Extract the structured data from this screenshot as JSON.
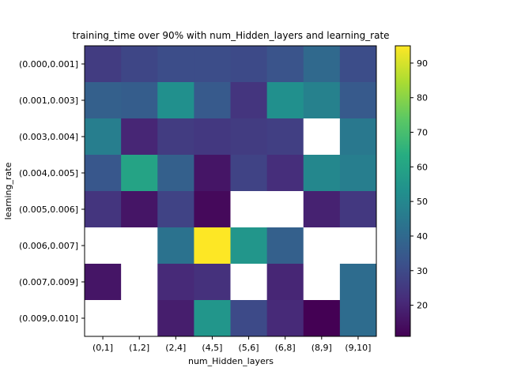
{
  "chart_data": {
    "type": "heatmap",
    "title": "training_time over 90% with num_Hidden_layers and learning_rate",
    "xlabel": "num_Hidden_layers",
    "ylabel": "learning_rate",
    "x_categories": [
      "(0,1]",
      "(1,2]",
      "(2,4]",
      "(4,5]",
      "(5,6]",
      "(6,8]",
      "(8,9]",
      "(9,10]"
    ],
    "y_categories": [
      "(0.000,0.001]",
      "(0.001,0.003]",
      "(0.003,0.004]",
      "(0.004,0.005]",
      "(0.005,0.006]",
      "(0.006,0.007]",
      "(0.007,0.009]",
      "(0.009,0.010]"
    ],
    "values": [
      [
        26,
        29,
        31,
        31,
        30,
        33,
        40,
        31
      ],
      [
        37,
        36,
        53,
        35,
        24,
        53,
        48,
        35
      ],
      [
        47,
        20,
        26,
        25,
        26,
        27,
        null,
        45
      ],
      [
        34,
        60,
        37,
        16,
        28,
        22,
        50,
        47
      ],
      [
        24,
        16,
        28,
        13,
        null,
        null,
        19,
        25
      ],
      [
        null,
        null,
        43,
        95,
        55,
        37,
        null,
        null
      ],
      [
        16,
        null,
        21,
        23,
        null,
        20,
        null,
        41
      ],
      [
        null,
        null,
        18,
        55,
        30,
        21,
        11,
        41
      ]
    ],
    "colorbar": {
      "range": [
        11,
        95
      ],
      "ticks": [
        20,
        30,
        40,
        50,
        60,
        70,
        80,
        90
      ],
      "colormap": "viridis"
    },
    "missing_color": "#ffffff"
  }
}
